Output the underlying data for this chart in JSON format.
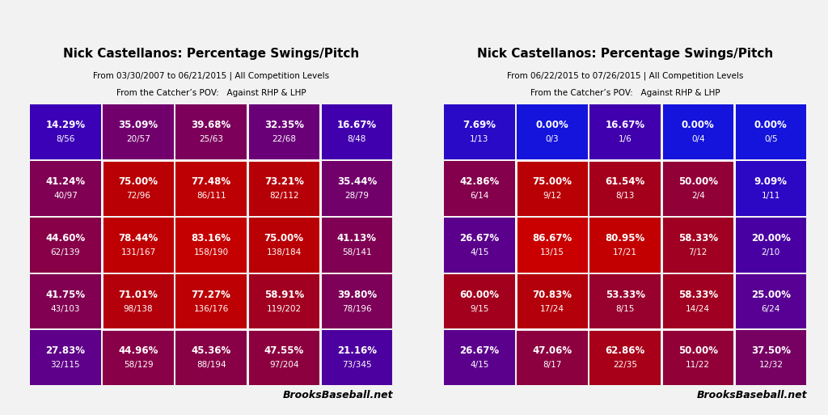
{
  "left": {
    "title": "Nick Castellanos: Percentage Swings/Pitch",
    "subtitle1": "From 03/30/2007 to 06/21/2015 | All Competition Levels",
    "subtitle2": "From the Catcher’s POV:   Against RHP & LHP",
    "grid": [
      [
        {
          "pct": 14.29,
          "num": "8/56"
        },
        {
          "pct": 35.09,
          "num": "20/57"
        },
        {
          "pct": 39.68,
          "num": "25/63"
        },
        {
          "pct": 32.35,
          "num": "22/68"
        },
        {
          "pct": 16.67,
          "num": "8/48"
        }
      ],
      [
        {
          "pct": 41.24,
          "num": "40/97"
        },
        {
          "pct": 75.0,
          "num": "72/96"
        },
        {
          "pct": 77.48,
          "num": "86/111"
        },
        {
          "pct": 73.21,
          "num": "82/112"
        },
        {
          "pct": 35.44,
          "num": "28/79"
        }
      ],
      [
        {
          "pct": 44.6,
          "num": "62/139"
        },
        {
          "pct": 78.44,
          "num": "131/167"
        },
        {
          "pct": 83.16,
          "num": "158/190"
        },
        {
          "pct": 75.0,
          "num": "138/184"
        },
        {
          "pct": 41.13,
          "num": "58/141"
        }
      ],
      [
        {
          "pct": 41.75,
          "num": "43/103"
        },
        {
          "pct": 71.01,
          "num": "98/138"
        },
        {
          "pct": 77.27,
          "num": "136/176"
        },
        {
          "pct": 58.91,
          "num": "119/202"
        },
        {
          "pct": 39.8,
          "num": "78/196"
        }
      ],
      [
        {
          "pct": 27.83,
          "num": "32/115"
        },
        {
          "pct": 44.96,
          "num": "58/129"
        },
        {
          "pct": 45.36,
          "num": "88/194"
        },
        {
          "pct": 47.55,
          "num": "97/204"
        },
        {
          "pct": 21.16,
          "num": "73/345"
        }
      ]
    ]
  },
  "right": {
    "title": "Nick Castellanos: Percentage Swings/Pitch",
    "subtitle1": "From 06/22/2015 to 07/26/2015 | All Competition Levels",
    "subtitle2": "From the Catcher’s POV:   Against RHP & LHP",
    "grid": [
      [
        {
          "pct": 7.69,
          "num": "1/13"
        },
        {
          "pct": 0.0,
          "num": "0/3"
        },
        {
          "pct": 16.67,
          "num": "1/6"
        },
        {
          "pct": 0.0,
          "num": "0/4"
        },
        {
          "pct": 0.0,
          "num": "0/5"
        }
      ],
      [
        {
          "pct": 42.86,
          "num": "6/14"
        },
        {
          "pct": 75.0,
          "num": "9/12"
        },
        {
          "pct": 61.54,
          "num": "8/13"
        },
        {
          "pct": 50.0,
          "num": "2/4"
        },
        {
          "pct": 9.09,
          "num": "1/11"
        }
      ],
      [
        {
          "pct": 26.67,
          "num": "4/15"
        },
        {
          "pct": 86.67,
          "num": "13/15"
        },
        {
          "pct": 80.95,
          "num": "17/21"
        },
        {
          "pct": 58.33,
          "num": "7/12"
        },
        {
          "pct": 20.0,
          "num": "2/10"
        }
      ],
      [
        {
          "pct": 60.0,
          "num": "9/15"
        },
        {
          "pct": 70.83,
          "num": "17/24"
        },
        {
          "pct": 53.33,
          "num": "8/15"
        },
        {
          "pct": 58.33,
          "num": "14/24"
        },
        {
          "pct": 25.0,
          "num": "6/24"
        }
      ],
      [
        {
          "pct": 26.67,
          "num": "4/15"
        },
        {
          "pct": 47.06,
          "num": "8/17"
        },
        {
          "pct": 62.86,
          "num": "22/35"
        },
        {
          "pct": 50.0,
          "num": "11/22"
        },
        {
          "pct": 37.5,
          "num": "12/32"
        }
      ]
    ]
  },
  "background_color": "#f2f2f2",
  "branding": "BrooksBaseball.net",
  "title_fontsize": 11,
  "sub_fontsize": 7.5,
  "cell_text_fontsize": 8.5,
  "cell_num_fontsize": 7.5
}
